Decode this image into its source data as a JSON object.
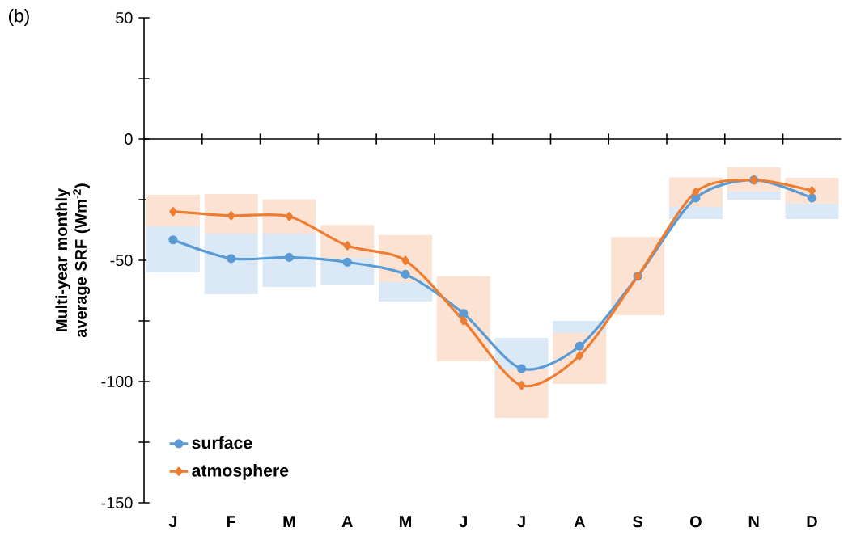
{
  "chart_data": {
    "type": "line",
    "categories": [
      "J",
      "F",
      "M",
      "A",
      "M",
      "J",
      "J",
      "A",
      "S",
      "O",
      "N",
      "D"
    ],
    "ylabel": "Multi-year monthly average  SRF (Wm$^{-2}$)",
    "annotations": [
      "(b)"
    ],
    "ylim": [
      -150,
      50
    ],
    "yticks": [
      -150,
      {
        "value": -125,
        "label": null
      },
      -100,
      {
        "value": -75,
        "label": null
      },
      -50,
      {
        "value": -25,
        "label": null
      },
      0,
      {
        "value": 25,
        "label": null
      },
      50
    ],
    "legend": "bottom left",
    "line_style": "solid",
    "series": [
      {
        "type": "bar",
        "color": "#dbe9f6",
        "base": [
          -55,
          -64,
          -61,
          -60,
          -67,
          null,
          -95,
          -80,
          null,
          -33,
          -25,
          -33
        ],
        "values": [
          19,
          25,
          22,
          11,
          8,
          null,
          13,
          5,
          null,
          5,
          3.4,
          6.4
        ]
      },
      {
        "type": "bar",
        "color": "#fbe2d2",
        "base": [
          -36,
          -39,
          -39,
          -49,
          -59,
          -91.6,
          -115,
          -101,
          -72.7,
          -28,
          -21.6,
          -26.6
        ],
        "values": [
          13,
          16.3,
          14.1,
          13.6,
          19.4,
          35,
          20,
          21,
          32.3,
          12.2,
          10,
          10.6
        ]
      },
      {
        "name": "surface",
        "color": "#5b9bd5",
        "marker": "circle",
        "values": [
          -41.6,
          -49.3,
          -48.8,
          -50.8,
          -55.8,
          -71.9,
          -94.7,
          -85.4,
          -56.6,
          -24.3,
          -16.9,
          -24.3
        ]
      },
      {
        "name": "atmosphere",
        "color": "#ed7d31",
        "marker": "diamond",
        "values": [
          -29.9,
          -31.6,
          -31.9,
          -44,
          -50.1,
          -74.9,
          -101.6,
          -89.3,
          -56.6,
          -21.8,
          -16.9,
          -21.3
        ]
      }
    ]
  }
}
